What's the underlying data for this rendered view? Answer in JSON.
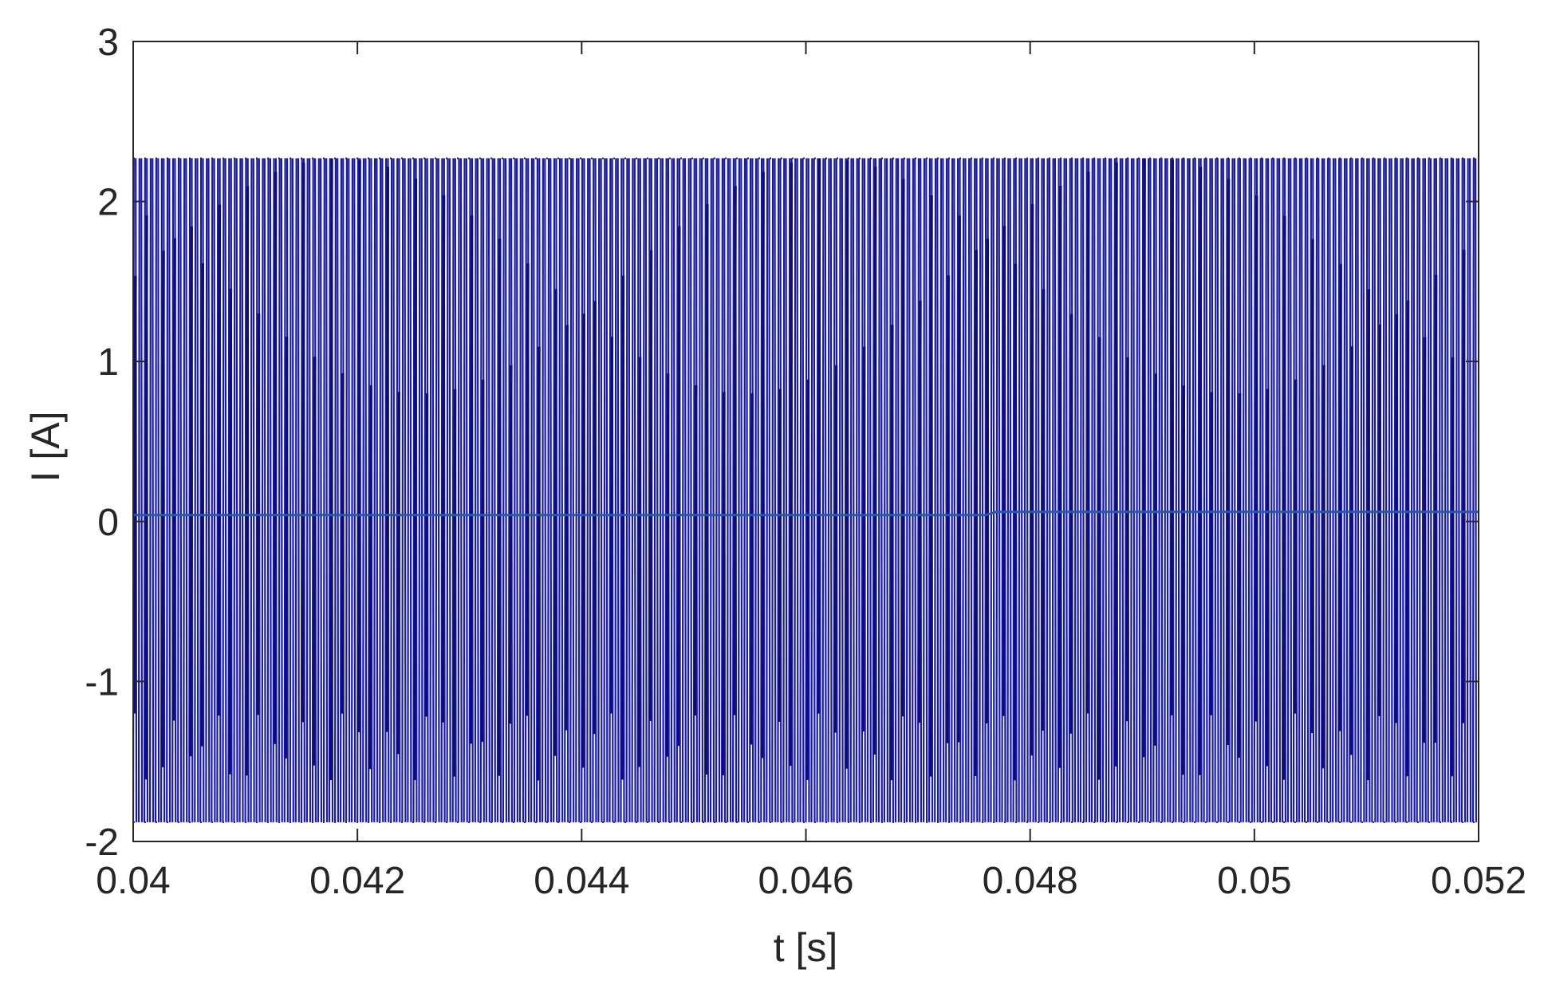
{
  "chart_data": {
    "type": "line",
    "title": "",
    "xlabel": "t [s]",
    "ylabel": "I [A]",
    "xlim": [
      0.04,
      0.052
    ],
    "ylim": [
      -2,
      3
    ],
    "xticks": [
      0.04,
      0.042,
      0.044,
      0.046,
      0.048,
      0.05,
      0.052
    ],
    "xtick_labels": [
      "0.04",
      "0.042",
      "0.044",
      "0.046",
      "0.048",
      "0.05",
      "0.052"
    ],
    "yticks": [
      -2,
      -1,
      0,
      1,
      2,
      3
    ],
    "ytick_labels": [
      "-2",
      "-1",
      "0",
      "1",
      "2",
      "3"
    ],
    "grid": false,
    "legend": "none",
    "colors": {
      "signal": "#1a1aa8",
      "signal_dark": "#0c0c7a",
      "mean": "#2e55a8",
      "axes": "#262626"
    },
    "series": [
      {
        "switching_pulses": 240,
        "upper_envelope": 2.27,
        "lower_envelope": -1.88,
        "upper_inner_band": [
          0.8,
          2.27
        ],
        "lower_inner_band": [
          -1.62,
          -1.2
        ]
      },
      {
        "x": [
          0.04,
          0.0476,
          0.0477,
          0.052
        ],
        "y": [
          0.04,
          0.04,
          0.06,
          0.06
        ]
      }
    ]
  }
}
